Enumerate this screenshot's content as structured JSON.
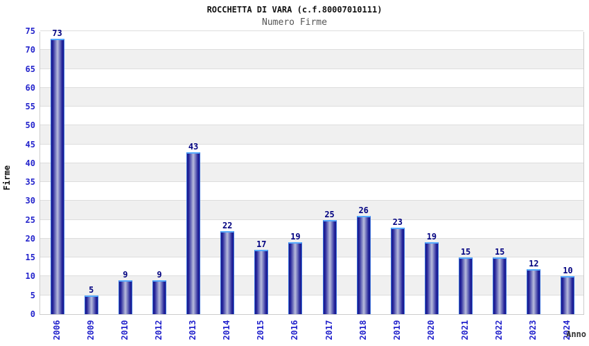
{
  "chart_data": {
    "type": "bar",
    "title": "ROCCHETTA DI VARA (c.f.80007010111)",
    "subtitle": "Numero Firme",
    "xlabel": "Anno",
    "ylabel": "Firme",
    "categories": [
      "2006",
      "2009",
      "2010",
      "2012",
      "2013",
      "2014",
      "2015",
      "2016",
      "2017",
      "2018",
      "2019",
      "2020",
      "2021",
      "2022",
      "2023",
      "2024"
    ],
    "values": [
      73,
      5,
      9,
      9,
      43,
      22,
      17,
      19,
      25,
      26,
      23,
      19,
      15,
      15,
      12,
      10
    ],
    "ylim": [
      0,
      75
    ],
    "ytick_step": 5,
    "grid": true,
    "legend": "none",
    "colors": {
      "bar_edge": "#1a1a8c",
      "bar_mid": "#b8bcdc",
      "bar_cap": "#55aaff",
      "bar_side_outline": "#3a6fd8",
      "value_label": "#000080",
      "tick_label": "#2323cc",
      "gridline": "#dddddd",
      "band_gray": "#f0f0f0",
      "band_white": "#ffffff",
      "plot_border": "#cccccc",
      "title": "#111111",
      "subtitle": "#555555",
      "xlabel_color": "#333333"
    }
  }
}
